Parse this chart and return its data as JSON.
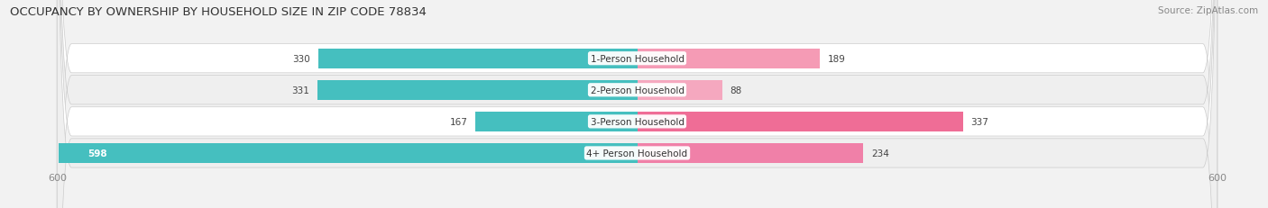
{
  "title": "OCCUPANCY BY OWNERSHIP BY HOUSEHOLD SIZE IN ZIP CODE 78834",
  "source": "Source: ZipAtlas.com",
  "categories": [
    "1-Person Household",
    "2-Person Household",
    "3-Person Household",
    "4+ Person Household"
  ],
  "owner_values": [
    330,
    331,
    167,
    598
  ],
  "renter_values": [
    189,
    88,
    337,
    234
  ],
  "max_val": 600,
  "owner_color": "#45BFBF",
  "renter_color_1": "#F59BB5",
  "renter_color_2": "#EF6D96",
  "renter_colors": [
    "#F59BB5",
    "#F5A8BF",
    "#EF6D96",
    "#F080A8"
  ],
  "bg_color": "#f2f2f2",
  "row_colors": [
    "#ffffff",
    "#efefef",
    "#ffffff",
    "#efefef"
  ],
  "label_color": "#444444",
  "axis_label_color": "#888888",
  "title_color": "#333333",
  "max_axis": 600
}
